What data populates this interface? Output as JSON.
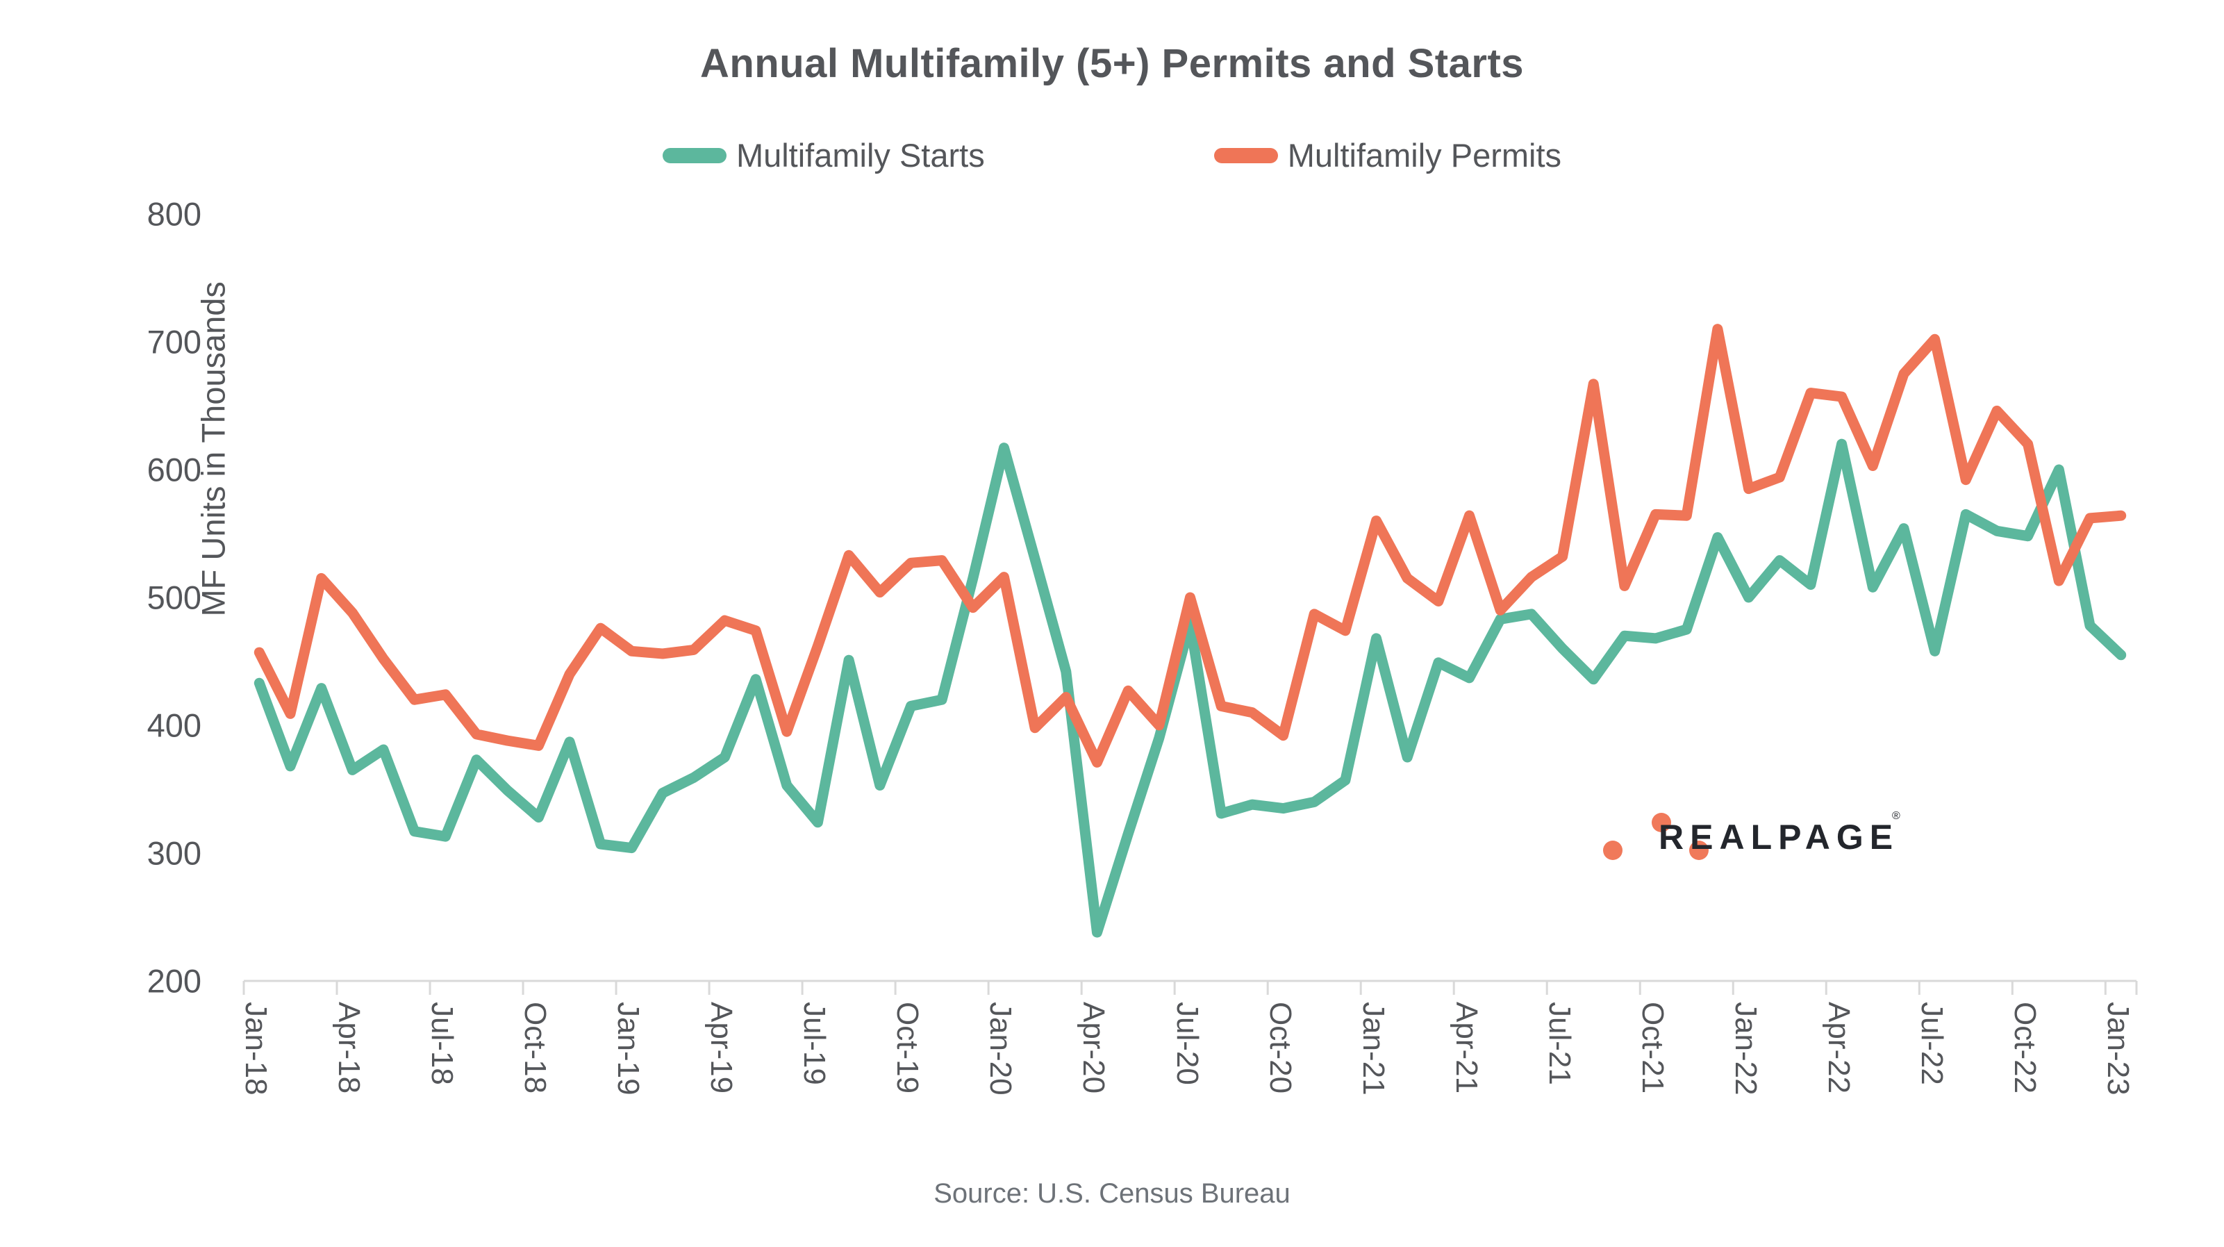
{
  "title": "Annual Multifamily (5+) Permits and Starts",
  "legend": {
    "starts_label": "Multifamily Starts",
    "permits_label": "Multifamily Permits"
  },
  "source_note": "Source: U.S. Census Bureau",
  "logo": {
    "text": "REALPAGE",
    "registered_mark": "®",
    "dot_color": "#f0795a",
    "text_color": "#23262c"
  },
  "colors": {
    "starts_line": "#5cb79d",
    "permits_line": "#ef7557",
    "axis_line": "#d9d9d9",
    "text_gray": "#54565a"
  },
  "chart_data": {
    "type": "line",
    "title": "Annual Multifamily (5+) Permits and Starts",
    "xlabel": "",
    "ylabel": "MF Units in Thousands",
    "ylim": [
      200,
      800
    ],
    "yticks": [
      200,
      300,
      400,
      500,
      600,
      700,
      800
    ],
    "grid": false,
    "legend_position": "top",
    "x": [
      "Jan-18",
      "Feb-18",
      "Mar-18",
      "Apr-18",
      "May-18",
      "Jun-18",
      "Jul-18",
      "Aug-18",
      "Sep-18",
      "Oct-18",
      "Nov-18",
      "Dec-18",
      "Jan-19",
      "Feb-19",
      "Mar-19",
      "Apr-19",
      "May-19",
      "Jun-19",
      "Jul-19",
      "Aug-19",
      "Sep-19",
      "Oct-19",
      "Nov-19",
      "Dec-19",
      "Jan-20",
      "Feb-20",
      "Mar-20",
      "Apr-20",
      "May-20",
      "Jun-20",
      "Jul-20",
      "Aug-20",
      "Sep-20",
      "Oct-20",
      "Nov-20",
      "Dec-20",
      "Jan-21",
      "Feb-21",
      "Mar-21",
      "Apr-21",
      "May-21",
      "Jun-21",
      "Jul-21",
      "Aug-21",
      "Sep-21",
      "Oct-21",
      "Nov-21",
      "Dec-21",
      "Jan-22",
      "Feb-22",
      "Mar-22",
      "Apr-22",
      "May-22",
      "Jun-22",
      "Jul-22",
      "Aug-22",
      "Sep-22",
      "Oct-22",
      "Nov-22",
      "Dec-22",
      "Jan-23"
    ],
    "x_tick_labels": [
      "Jan-18",
      "Apr-18",
      "Jul-18",
      "Oct-18",
      "Jan-19",
      "Apr-19",
      "Jul-19",
      "Oct-19",
      "Jan-20",
      "Apr-20",
      "Jul-20",
      "Oct-20",
      "Jan-21",
      "Apr-21",
      "Jul-21",
      "Oct-21",
      "Jan-22",
      "Apr-22",
      "Jul-22",
      "Oct-22",
      "Jan-23"
    ],
    "series": [
      {
        "name": "Multifamily Starts",
        "color": "#5cb79d",
        "values": [
          433,
          368,
          429,
          365,
          381,
          317,
          313,
          373,
          349,
          328,
          387,
          307,
          304,
          347,
          359,
          375,
          436,
          353,
          324,
          451,
          353,
          415,
          420,
          515,
          617,
          530,
          442,
          238,
          315,
          390,
          480,
          331,
          338,
          335,
          340,
          357,
          468,
          375,
          449,
          437,
          483,
          487,
          460,
          436,
          470,
          468,
          475,
          547,
          500,
          529,
          510,
          620,
          508,
          554,
          458,
          565,
          552,
          548,
          600,
          478,
          455
        ]
      },
      {
        "name": "Multifamily Permits",
        "color": "#ef7557",
        "values": [
          457,
          409,
          515,
          488,
          452,
          420,
          424,
          393,
          388,
          384,
          440,
          476,
          458,
          456,
          459,
          482,
          474,
          395,
          462,
          533,
          504,
          527,
          529,
          492,
          516,
          398,
          422,
          371,
          427,
          400,
          500,
          415,
          410,
          392,
          487,
          474,
          560,
          515,
          497,
          564,
          490,
          516,
          532,
          667,
          509,
          565,
          564,
          710,
          585,
          594,
          660,
          657,
          603,
          675,
          702,
          592,
          646,
          620,
          513,
          562,
          564
        ]
      }
    ]
  }
}
